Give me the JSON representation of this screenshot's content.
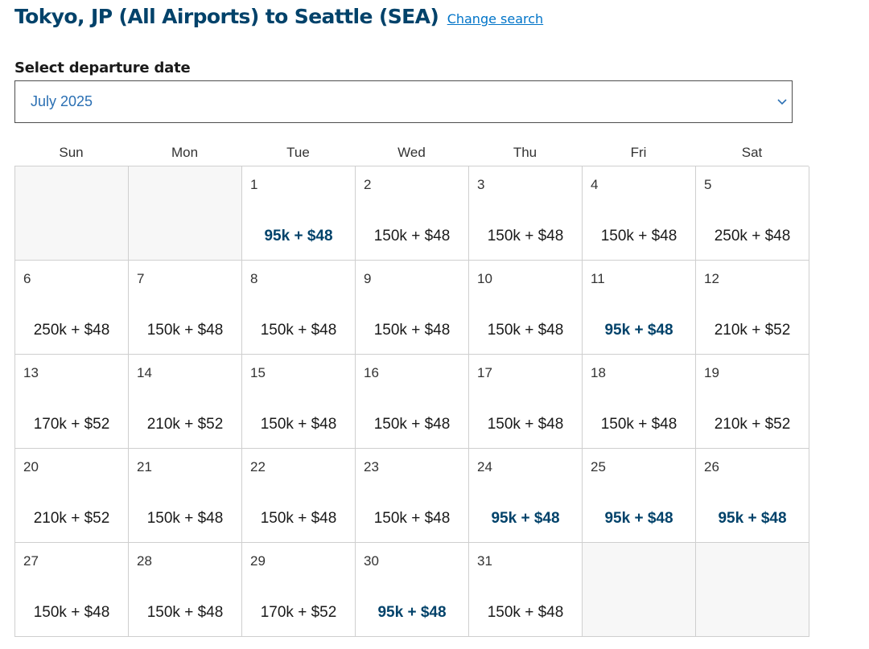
{
  "header": {
    "title": "Tokyo, JP (All Airports) to Seattle (SEA)",
    "change_link": "Change search"
  },
  "date_picker": {
    "label": "Select departure date",
    "selected_month": "July 2025",
    "chevron_icon": "chevron-down-icon"
  },
  "calendar": {
    "weekdays": [
      "Sun",
      "Mon",
      "Tue",
      "Wed",
      "Thu",
      "Fri",
      "Sat"
    ],
    "leading_blanks": 2,
    "days": [
      {
        "day": "1",
        "price": "95k + $48",
        "low": true
      },
      {
        "day": "2",
        "price": "150k + $48",
        "low": false
      },
      {
        "day": "3",
        "price": "150k + $48",
        "low": false
      },
      {
        "day": "4",
        "price": "150k + $48",
        "low": false
      },
      {
        "day": "5",
        "price": "250k + $48",
        "low": false
      },
      {
        "day": "6",
        "price": "250k + $48",
        "low": false
      },
      {
        "day": "7",
        "price": "150k + $48",
        "low": false
      },
      {
        "day": "8",
        "price": "150k + $48",
        "low": false
      },
      {
        "day": "9",
        "price": "150k + $48",
        "low": false
      },
      {
        "day": "10",
        "price": "150k + $48",
        "low": false
      },
      {
        "day": "11",
        "price": "95k + $48",
        "low": true
      },
      {
        "day": "12",
        "price": "210k + $52",
        "low": false
      },
      {
        "day": "13",
        "price": "170k + $52",
        "low": false
      },
      {
        "day": "14",
        "price": "210k + $52",
        "low": false
      },
      {
        "day": "15",
        "price": "150k + $48",
        "low": false
      },
      {
        "day": "16",
        "price": "150k + $48",
        "low": false
      },
      {
        "day": "17",
        "price": "150k + $48",
        "low": false
      },
      {
        "day": "18",
        "price": "150k + $48",
        "low": false
      },
      {
        "day": "19",
        "price": "210k + $52",
        "low": false
      },
      {
        "day": "20",
        "price": "210k + $52",
        "low": false
      },
      {
        "day": "21",
        "price": "150k + $48",
        "low": false
      },
      {
        "day": "22",
        "price": "150k + $48",
        "low": false
      },
      {
        "day": "23",
        "price": "150k + $48",
        "low": false
      },
      {
        "day": "24",
        "price": "95k + $48",
        "low": true
      },
      {
        "day": "25",
        "price": "95k + $48",
        "low": true
      },
      {
        "day": "26",
        "price": "95k + $48",
        "low": true
      },
      {
        "day": "27",
        "price": "150k + $48",
        "low": false
      },
      {
        "day": "28",
        "price": "150k + $48",
        "low": false
      },
      {
        "day": "29",
        "price": "170k + $52",
        "low": false
      },
      {
        "day": "30",
        "price": "95k + $48",
        "low": true
      },
      {
        "day": "31",
        "price": "150k + $48",
        "low": false
      }
    ],
    "trailing_blanks": 2
  },
  "colors": {
    "title": "#01426a",
    "link": "#0074c8",
    "month_text": "#2a6fb3",
    "lowest_price": "#01426a",
    "grid_border": "#cfcfcf",
    "empty_cell": "#f7f7f7"
  }
}
